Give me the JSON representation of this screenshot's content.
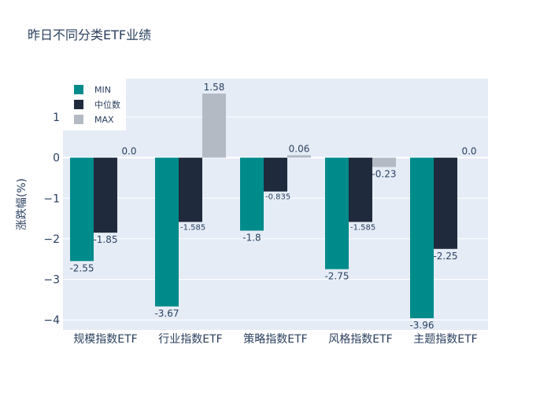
{
  "chart_data": {
    "type": "bar",
    "title": "昨日不同分类ETF业绩",
    "ylabel": "涨跌幅(%)",
    "xlabel": "",
    "categories": [
      "规模指数ETF",
      "行业指数ETF",
      "策略指数ETF",
      "风格指数ETF",
      "主题指数ETF"
    ],
    "series": [
      {
        "name": "MIN",
        "values": [
          -2.55,
          -3.67,
          -1.8,
          -2.75,
          -3.96
        ],
        "labels": [
          "-2.55",
          "-3.67",
          "-1.8",
          "-2.75",
          "-3.96"
        ],
        "color": "#008b8b"
      },
      {
        "name": "中位数",
        "values": [
          -1.85,
          -1.585,
          -0.835,
          -1.585,
          -2.25
        ],
        "labels": [
          "-1.85",
          "-1.585",
          "-0.835",
          "-1.585",
          "-2.25"
        ],
        "color": "#1f2a3c"
      },
      {
        "name": "MAX",
        "values": [
          0.0,
          1.58,
          0.06,
          -0.23,
          0.0
        ],
        "labels": [
          "0.0",
          "1.58",
          "0.06",
          "-0.23",
          "0.0"
        ],
        "color": "#b4bac3"
      }
    ],
    "yticks": [
      1,
      0,
      -1,
      -2,
      -3,
      -4
    ],
    "ytick_labels": [
      "1",
      "0",
      "−1",
      "−2",
      "−3",
      "−4"
    ],
    "ylim": [
      -4.25,
      1.95
    ],
    "grid": true,
    "legend_position": "top-left",
    "plot_background": "#e5ecf6"
  }
}
